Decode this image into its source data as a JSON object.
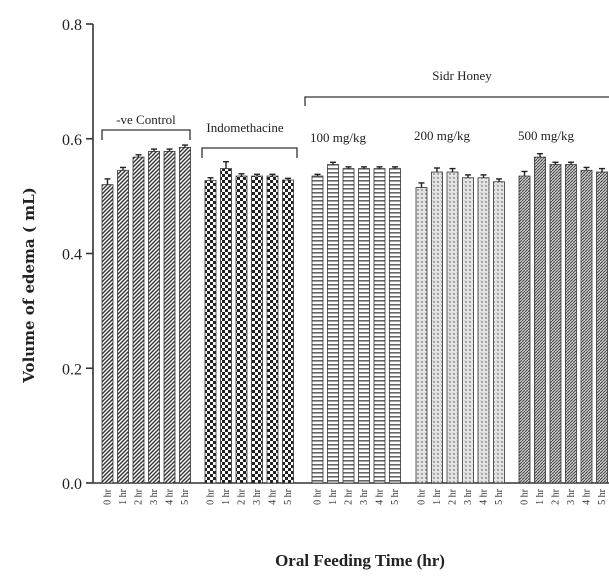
{
  "chart_data": {
    "type": "bar",
    "title": "",
    "xlabel": "Oral Feeding Time (hr)",
    "ylabel": "Volume of edema ( mL)",
    "ylim": [
      0.0,
      0.8
    ],
    "yticks": [
      "0.0",
      "0.2",
      "0.4",
      "0.6",
      "0.8"
    ],
    "grid": false,
    "categories": [
      "0 hr",
      "1 hr",
      "2 hr",
      "3 hr",
      "4 hr",
      "5 hr"
    ],
    "annotations": {
      "sidr_honey": "Sidr Honey"
    },
    "groups": [
      {
        "name": "-ve Control",
        "pattern": "diag",
        "values": [
          0.52,
          0.545,
          0.568,
          0.578,
          0.578,
          0.585
        ],
        "errors": [
          0.01,
          0.005,
          0.004,
          0.004,
          0.004,
          0.004
        ]
      },
      {
        "name": "Indomethacine",
        "pattern": "checker",
        "values": [
          0.527,
          0.548,
          0.535,
          0.535,
          0.535,
          0.528
        ],
        "errors": [
          0.005,
          0.012,
          0.004,
          0.003,
          0.003,
          0.003
        ]
      },
      {
        "name": "100 mg/kg",
        "pattern": "hlines",
        "values": [
          0.535,
          0.555,
          0.548,
          0.548,
          0.548,
          0.548
        ],
        "errors": [
          0.003,
          0.004,
          0.003,
          0.003,
          0.003,
          0.003
        ]
      },
      {
        "name": "200 mg/kg",
        "pattern": "dots",
        "values": [
          0.515,
          0.542,
          0.542,
          0.532,
          0.532,
          0.525
        ],
        "errors": [
          0.008,
          0.007,
          0.006,
          0.005,
          0.005,
          0.005
        ]
      },
      {
        "name": "500 mg/kg",
        "pattern": "dense",
        "values": [
          0.535,
          0.568,
          0.555,
          0.555,
          0.545,
          0.542
        ],
        "errors": [
          0.008,
          0.006,
          0.004,
          0.004,
          0.005,
          0.006
        ]
      }
    ]
  }
}
